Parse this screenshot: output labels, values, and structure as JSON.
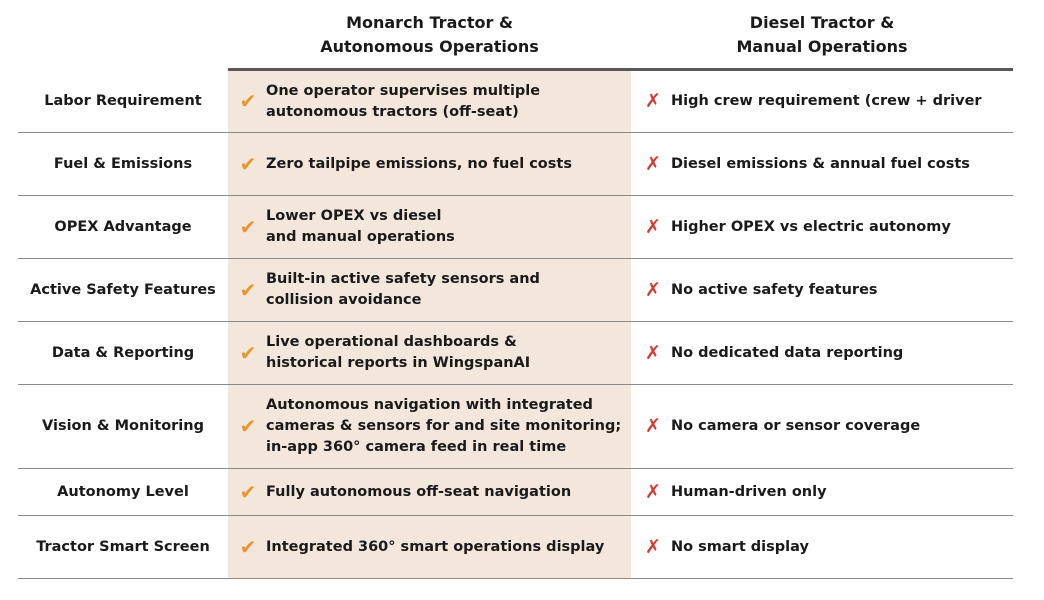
{
  "header": {
    "monarch_line1": "Monarch Tractor &",
    "monarch_line2": "Autonomous Operations",
    "diesel_line1": "Diesel Tractor &",
    "diesel_line2": "Manual Operations"
  },
  "icons": {
    "check": "✔",
    "cross": "✗",
    "check_color": "#e8962f",
    "cross_color": "#d23b32",
    "highlight_bg": "#f3e7dc"
  },
  "rows": [
    {
      "label": "Labor Requirement",
      "monarch": [
        "One operator supervises multiple",
        "autonomous tractors (off-seat)"
      ],
      "diesel": "High crew requirement (crew + driver"
    },
    {
      "label": "Fuel & Emissions",
      "monarch": [
        "Zero tailpipe emissions, no fuel costs"
      ],
      "diesel": "Diesel emissions & annual fuel costs"
    },
    {
      "label": "OPEX Advantage",
      "monarch": [
        "Lower OPEX vs diesel",
        "and manual operations"
      ],
      "diesel": "Higher OPEX vs electric autonomy"
    },
    {
      "label": "Active Safety Features",
      "monarch": [
        "Built-in active safety sensors and",
        "collision avoidance"
      ],
      "diesel": "No active safety features"
    },
    {
      "label": "Data & Reporting",
      "monarch": [
        "Live operational dashboards &",
        "historical reports in WingspanAI"
      ],
      "diesel": "No dedicated data reporting"
    },
    {
      "label": "Vision & Monitoring",
      "monarch": [
        "Autonomous navigation with integrated",
        "cameras & sensors for and site monitoring;",
        "in-app 360° camera feed in real time"
      ],
      "diesel": "No camera or sensor coverage"
    },
    {
      "label": "Autonomy Level",
      "monarch": [
        "Fully autonomous off-seat navigation"
      ],
      "diesel": "Human-driven only"
    },
    {
      "label": "Tractor Smart Screen",
      "monarch": [
        "Integrated 360° smart operations display"
      ],
      "diesel": "No smart display"
    }
  ]
}
